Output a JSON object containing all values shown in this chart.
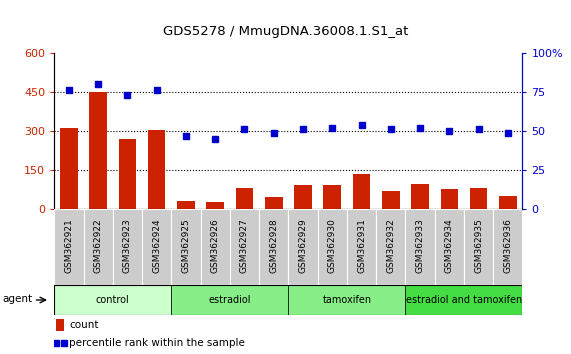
{
  "title": "GDS5278 / MmugDNA.36008.1.S1_at",
  "samples": [
    "GSM362921",
    "GSM362922",
    "GSM362923",
    "GSM362924",
    "GSM362925",
    "GSM362926",
    "GSM362927",
    "GSM362928",
    "GSM362929",
    "GSM362930",
    "GSM362931",
    "GSM362932",
    "GSM362933",
    "GSM362934",
    "GSM362935",
    "GSM362936"
  ],
  "counts": [
    310,
    450,
    270,
    305,
    30,
    25,
    80,
    45,
    90,
    90,
    135,
    70,
    95,
    75,
    80,
    50
  ],
  "percentile": [
    76,
    80,
    73,
    76,
    47,
    45,
    51,
    49,
    51,
    52,
    54,
    51,
    52,
    50,
    51,
    49
  ],
  "groups": [
    {
      "label": "control",
      "start": 0,
      "end": 4,
      "color": "#ccffcc"
    },
    {
      "label": "estradiol",
      "start": 4,
      "end": 8,
      "color": "#88ee88"
    },
    {
      "label": "tamoxifen",
      "start": 8,
      "end": 12,
      "color": "#88ee88"
    },
    {
      "label": "estradiol and tamoxifen",
      "start": 12,
      "end": 16,
      "color": "#44dd44"
    }
  ],
  "bar_color": "#cc2200",
  "dot_color": "#0000cc",
  "left_ylim": [
    0,
    600
  ],
  "right_ylim": [
    0,
    100
  ],
  "left_yticks": [
    0,
    150,
    300,
    450,
    600
  ],
  "left_yticklabels": [
    "0",
    "150",
    "300",
    "450",
    "600"
  ],
  "right_yticks": [
    0,
    25,
    50,
    75,
    100
  ],
  "right_yticklabels": [
    "0",
    "25",
    "50",
    "75",
    "100%"
  ],
  "grid_values": [
    150,
    300,
    450
  ],
  "agent_label": "agent",
  "legend_count_label": "count",
  "legend_pct_label": "percentile rank within the sample",
  "bg_color": "#ffffff",
  "plot_bg_color": "#ffffff",
  "tick_area_color": "#cccccc",
  "tick_area_border": "#999999"
}
